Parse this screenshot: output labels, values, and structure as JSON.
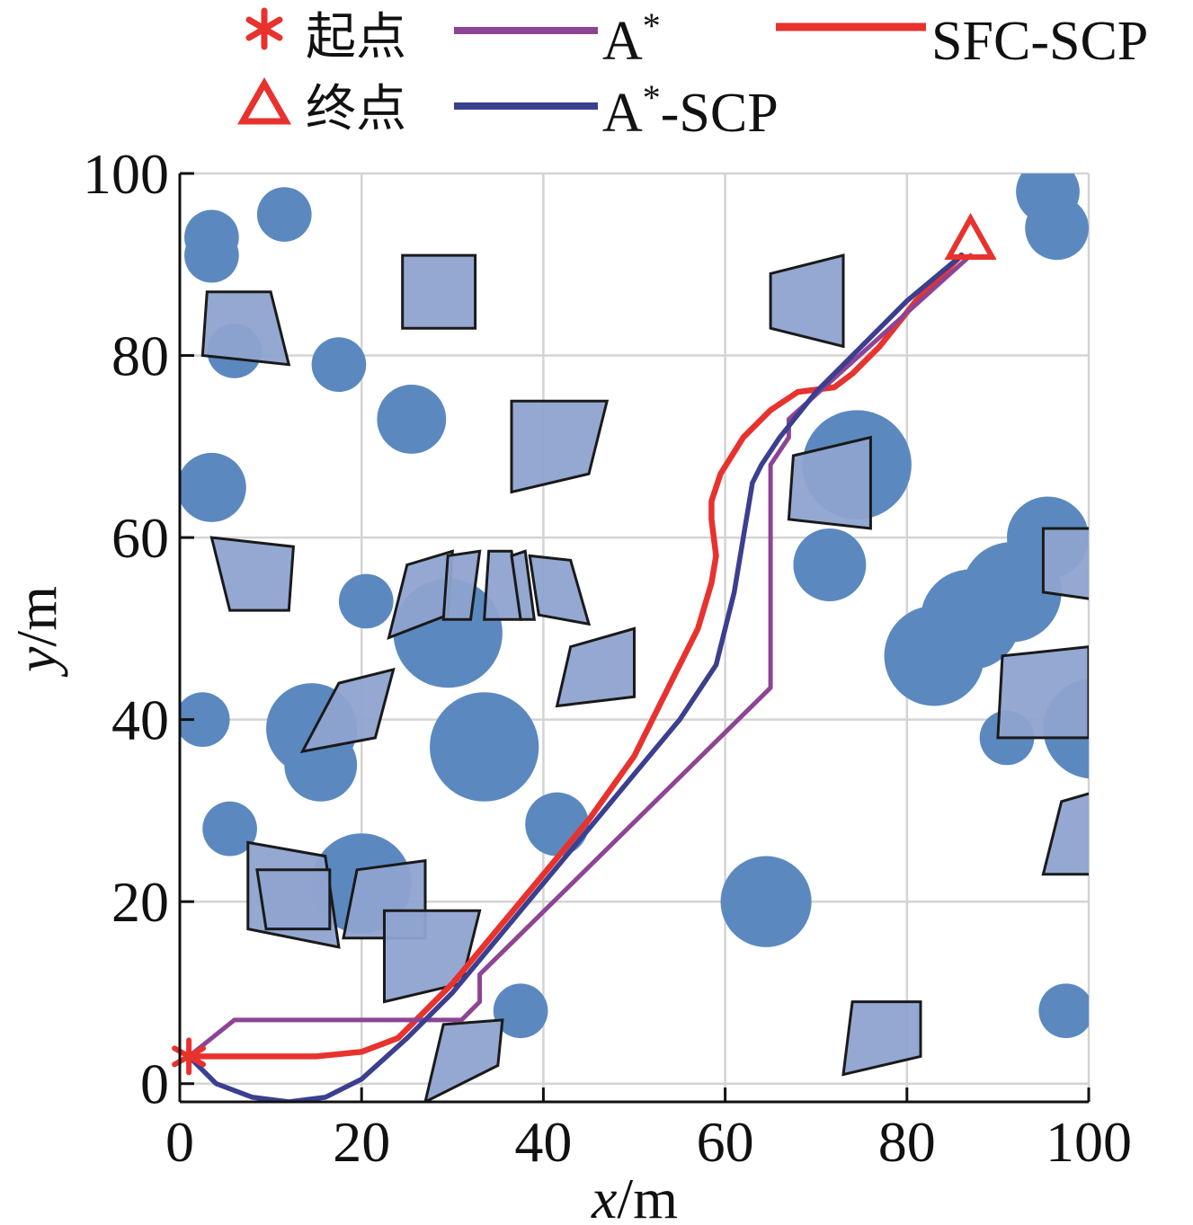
{
  "chart_data": {
    "type": "line",
    "xlabel_var": "x",
    "xlabel_unit": "/m",
    "ylabel_var": "y",
    "ylabel_unit": "/m",
    "xlim": [
      0,
      100
    ],
    "ylim": [
      -2,
      100
    ],
    "xticks": [
      "0",
      "20",
      "40",
      "60",
      "80",
      "100"
    ],
    "yticks": [
      "0",
      "20",
      "40",
      "60",
      "80",
      "100"
    ],
    "grid": true,
    "legend_position": "top",
    "colors": {
      "obstacle_circle": "#5b89bf",
      "obstacle_poly": "#8ea3cf",
      "start_goal": "#e8322e",
      "astar": "#8e4494",
      "astar_scp": "#3a3f8f",
      "sfc_scp": "#e8322e"
    },
    "start": {
      "label": "起点",
      "x": 1,
      "y": 3,
      "marker": "asterisk"
    },
    "goal": {
      "label": "终点",
      "x": 87,
      "y": 92,
      "marker": "triangle"
    },
    "series": [
      {
        "name": "A",
        "superscript": "*",
        "key": "astar",
        "x": [
          1,
          6,
          31,
          33,
          33,
          65,
          65,
          67,
          67,
          87
        ],
        "y": [
          3,
          7,
          7,
          9,
          12,
          43.5,
          68,
          71,
          73,
          91
        ]
      },
      {
        "name": "A",
        "superscript": "*",
        "suffix": "-SCP",
        "key": "astar_scp",
        "x": [
          1,
          4,
          8,
          12,
          16,
          20,
          25,
          30,
          35,
          40,
          45,
          50,
          55,
          59,
          61,
          62,
          62.5,
          63,
          64,
          66,
          70,
          75,
          80,
          86
        ],
        "y": [
          3,
          0,
          -1.5,
          -2,
          -1.5,
          0.5,
          5,
          10,
          16,
          22,
          28,
          34,
          40,
          46,
          54,
          60,
          63,
          66,
          68,
          71,
          76,
          81,
          86,
          91
        ]
      },
      {
        "name": "SFC-SCP",
        "key": "sfc_scp",
        "x": [
          1,
          5,
          10,
          15,
          20,
          24,
          27,
          30,
          35,
          40,
          45,
          50,
          54,
          57,
          58.5,
          59,
          58.5,
          58.5,
          59.5,
          62,
          65,
          68,
          72,
          74,
          77,
          81,
          86
        ],
        "y": [
          3,
          3,
          3,
          3,
          3.5,
          5,
          8,
          11,
          17,
          23,
          29,
          36,
          44,
          50,
          55,
          58,
          62,
          64,
          67,
          71,
          74,
          76,
          76.5,
          78,
          81,
          86,
          91
        ]
      }
    ],
    "circles": [
      {
        "x": 3.5,
        "y": 91,
        "r": 3
      },
      {
        "x": 3.5,
        "y": 93,
        "r": 3
      },
      {
        "x": 11.5,
        "y": 95.5,
        "r": 3
      },
      {
        "x": 6,
        "y": 80.5,
        "r": 3
      },
      {
        "x": 17.5,
        "y": 79,
        "r": 3
      },
      {
        "x": 25.5,
        "y": 73,
        "r": 3.8
      },
      {
        "x": 3.5,
        "y": 65.5,
        "r": 3.8
      },
      {
        "x": 20.5,
        "y": 53,
        "r": 3
      },
      {
        "x": 29.5,
        "y": 49.5,
        "r": 6
      },
      {
        "x": 14.5,
        "y": 39,
        "r": 5
      },
      {
        "x": 15.5,
        "y": 35,
        "r": 4
      },
      {
        "x": 2.5,
        "y": 40,
        "r": 3
      },
      {
        "x": 33.5,
        "y": 37,
        "r": 6
      },
      {
        "x": 5.5,
        "y": 28,
        "r": 3
      },
      {
        "x": 20,
        "y": 22,
        "r": 5.5
      },
      {
        "x": 41.5,
        "y": 28.5,
        "r": 3.5
      },
      {
        "x": 37.5,
        "y": 8,
        "r": 3
      },
      {
        "x": 64.5,
        "y": 20,
        "r": 5
      },
      {
        "x": 74.5,
        "y": 68,
        "r": 6
      },
      {
        "x": 71.5,
        "y": 57,
        "r": 4
      },
      {
        "x": 83,
        "y": 47,
        "r": 5.5
      },
      {
        "x": 87,
        "y": 51,
        "r": 5.5
      },
      {
        "x": 91.5,
        "y": 54,
        "r": 5.5
      },
      {
        "x": 95.5,
        "y": 60,
        "r": 4.5
      },
      {
        "x": 91,
        "y": 38,
        "r": 3
      },
      {
        "x": 100.5,
        "y": 39,
        "r": 5.5
      },
      {
        "x": 95.5,
        "y": 98,
        "r": 3.5
      },
      {
        "x": 96.5,
        "y": 94,
        "r": 3.5
      },
      {
        "x": 97.5,
        "y": 8,
        "r": 3
      }
    ],
    "polygons": [
      [
        [
          3,
          87
        ],
        [
          10,
          87
        ],
        [
          12,
          79
        ],
        [
          2.5,
          80
        ]
      ],
      [
        [
          24.5,
          91
        ],
        [
          32.5,
          91
        ],
        [
          32.5,
          83
        ],
        [
          24.5,
          83
        ]
      ],
      [
        [
          65,
          89
        ],
        [
          73,
          91
        ],
        [
          73,
          81
        ],
        [
          65,
          83
        ]
      ],
      [
        [
          36.5,
          75
        ],
        [
          47,
          75
        ],
        [
          45,
          67
        ],
        [
          36.5,
          65
        ]
      ],
      [
        [
          67.5,
          69
        ],
        [
          76,
          71
        ],
        [
          76,
          61
        ],
        [
          67,
          62
        ]
      ],
      [
        [
          3.5,
          60
        ],
        [
          12.5,
          59
        ],
        [
          12,
          52
        ],
        [
          5.5,
          52
        ]
      ],
      [
        [
          25,
          57
        ],
        [
          30,
          58.5
        ],
        [
          29.5,
          51.5
        ],
        [
          23,
          49
        ]
      ],
      [
        [
          29.5,
          58
        ],
        [
          33,
          58.5
        ],
        [
          32,
          51
        ],
        [
          29,
          51
        ]
      ],
      [
        [
          34,
          58.5
        ],
        [
          36.5,
          58.5
        ],
        [
          37.5,
          51
        ],
        [
          33.5,
          51
        ]
      ],
      [
        [
          36.5,
          58
        ],
        [
          38,
          58.5
        ],
        [
          39,
          51
        ],
        [
          37.5,
          51
        ]
      ],
      [
        [
          38.5,
          58
        ],
        [
          43,
          57.5
        ],
        [
          45,
          50.5
        ],
        [
          39.5,
          51.5
        ]
      ],
      [
        [
          17.5,
          44
        ],
        [
          23.5,
          45.5
        ],
        [
          21.5,
          38
        ],
        [
          13.5,
          36.5
        ]
      ],
      [
        [
          43,
          48
        ],
        [
          50,
          50
        ],
        [
          50,
          42.5
        ],
        [
          41.5,
          41.5
        ]
      ],
      [
        [
          7.5,
          26.5
        ],
        [
          16,
          25
        ],
        [
          17.5,
          15
        ],
        [
          7.5,
          17
        ]
      ],
      [
        [
          8.5,
          23.5
        ],
        [
          16.5,
          23.5
        ],
        [
          16.5,
          17
        ],
        [
          9.5,
          17
        ]
      ],
      [
        [
          19.5,
          23.5
        ],
        [
          27,
          24.5
        ],
        [
          27,
          16
        ],
        [
          18,
          16
        ]
      ],
      [
        [
          22.5,
          19
        ],
        [
          33,
          19
        ],
        [
          31,
          11
        ],
        [
          22.5,
          9
        ]
      ],
      [
        [
          29,
          6.5
        ],
        [
          35.5,
          7
        ],
        [
          35,
          2
        ],
        [
          27,
          -2
        ]
      ],
      [
        [
          74,
          9
        ],
        [
          81.5,
          9
        ],
        [
          81.5,
          3
        ],
        [
          73,
          1
        ]
      ],
      [
        [
          95,
          61
        ],
        [
          102,
          61
        ],
        [
          102,
          53
        ],
        [
          95,
          54
        ]
      ],
      [
        [
          90.5,
          47
        ],
        [
          100,
          48
        ],
        [
          100,
          38
        ],
        [
          90,
          38
        ]
      ],
      [
        [
          97,
          31
        ],
        [
          104,
          33
        ],
        [
          104,
          23
        ],
        [
          95,
          23
        ]
      ]
    ]
  },
  "legend": {
    "start_label": "起点",
    "goal_label": "终点",
    "astar_label": "A",
    "astar_sup": "*",
    "astar_scp_label": "A",
    "astar_scp_sup": "*",
    "astar_scp_suffix": "-SCP",
    "sfc_scp_label": "SFC-SCP"
  }
}
